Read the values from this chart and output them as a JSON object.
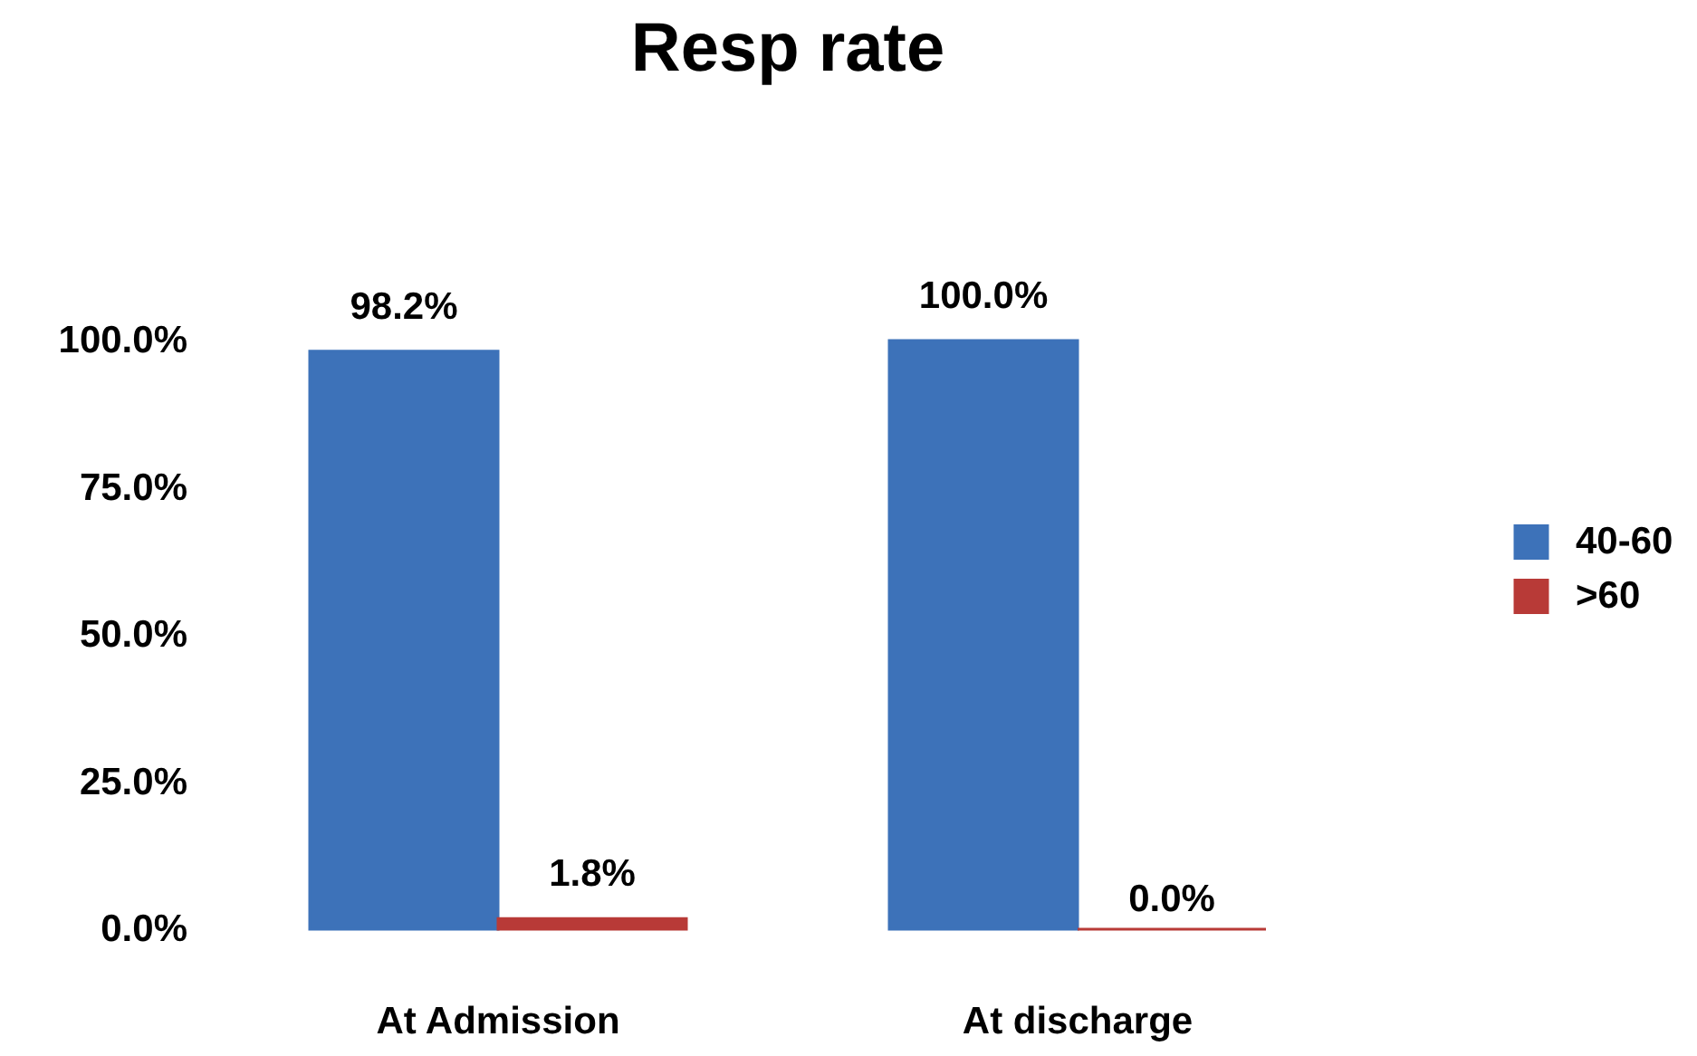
{
  "chart_data": {
    "type": "bar",
    "title": "Resp rate",
    "categories": [
      "At Admission",
      "At discharge"
    ],
    "series": [
      {
        "name": "40-60",
        "color": "#3d72b9",
        "values": [
          98.2,
          100.0
        ],
        "value_labels": [
          "98.2%",
          "100.0%"
        ]
      },
      {
        "name": ">60",
        "color": "#b83a37",
        "values": [
          1.8,
          0.0
        ],
        "value_labels": [
          "1.8%",
          "0.0%"
        ]
      }
    ],
    "ylim": [
      0,
      100
    ],
    "yticks": [
      {
        "value": 0,
        "label": "0.0%"
      },
      {
        "value": 25,
        "label": "25.0%"
      },
      {
        "value": 50,
        "label": "50.0%"
      },
      {
        "value": 75,
        "label": "75.0%"
      },
      {
        "value": 100,
        "label": "100.0%"
      }
    ],
    "grid": false,
    "legend": "right"
  }
}
